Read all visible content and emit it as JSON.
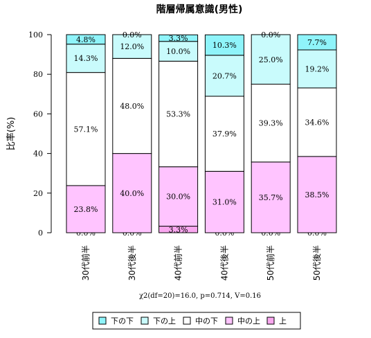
{
  "chart_data": {
    "type": "bar",
    "stacked": true,
    "title": "階層帰属意識(男性)",
    "ylabel": "比率(%)",
    "ylim": [
      0,
      100
    ],
    "yticks": [
      0,
      20,
      40,
      60,
      80,
      100
    ],
    "categories": [
      "30代前半",
      "30代後半",
      "40代前半",
      "40代後半",
      "50代前半",
      "50代後半"
    ],
    "series": [
      {
        "name": "上",
        "color": "#f9a7ef",
        "values": [
          0.0,
          0.0,
          3.3,
          0.0,
          0.0,
          0.0
        ],
        "labels": [
          "0.0%",
          "0.0%",
          "3.3%",
          "0.0%",
          "0.0%",
          "0.0%"
        ]
      },
      {
        "name": "中の上",
        "color": "#ffc4ff",
        "values": [
          23.8,
          40.0,
          30.0,
          31.0,
          35.7,
          38.5
        ],
        "labels": [
          "23.8%",
          "40.0%",
          "30.0%",
          "31.0%",
          "35.7%",
          "38.5%"
        ]
      },
      {
        "name": "中の下",
        "color": "#ffffff",
        "values": [
          57.1,
          48.0,
          53.3,
          37.9,
          39.3,
          34.6
        ],
        "labels": [
          "57.1%",
          "48.0%",
          "53.3%",
          "37.9%",
          "39.3%",
          "34.6%"
        ]
      },
      {
        "name": "下の上",
        "color": "#c9fbfc",
        "values": [
          14.3,
          12.0,
          10.0,
          20.7,
          25.0,
          19.2
        ],
        "labels": [
          "14.3%",
          "12.0%",
          "10.0%",
          "20.7%",
          "25.0%",
          "19.2%"
        ]
      },
      {
        "name": "下の下",
        "color": "#8ff4fa",
        "values": [
          4.8,
          0.0,
          3.3,
          10.3,
          0.0,
          7.7
        ],
        "labels": [
          "4.8%",
          "0.0%",
          "3.3%",
          "10.3%",
          "0.0%",
          "7.7%"
        ]
      }
    ],
    "legend_order": [
      "下の下",
      "下の上",
      "中の下",
      "中の上",
      "上"
    ],
    "legend_position": "bottom",
    "annotation": "χ2(df=20)=16.0, p=0.714, V=0.16",
    "grid": false
  }
}
